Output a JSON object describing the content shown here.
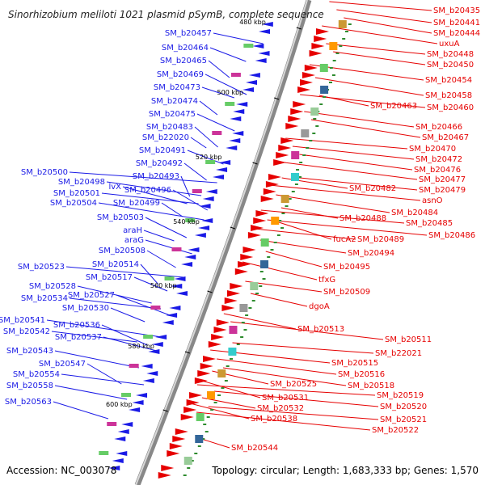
{
  "map": {
    "title": "Sinorhizobium meliloti 1021 plasmid pSymB, complete sequence",
    "accession": "Accession: NC_003078",
    "topology": "Topology: circular; Length: 1,683,333 bp; Genes: 1,570",
    "scale_labels": [
      "480 kbp",
      "500 kbp",
      "520 kbp",
      "540 kbp",
      "560 kbp",
      "580 kbp",
      "600 kbp"
    ],
    "colors": {
      "reverse": "#1a1ae6",
      "forward": "#e60000",
      "backbone": "#888888",
      "minor_tick": "#2e8b2e"
    }
  },
  "reverse_labels": [
    "SM_b20457",
    "SM_b20464",
    "SM_b20465",
    "SM_b20469",
    "SM_b20473",
    "SM_b20474",
    "SM_b20475",
    "SM_b20483",
    "SM_b22020",
    "SM_b20491",
    "SM_b20492",
    "SM_b20493",
    "SM_b20500",
    "SM_b20498",
    "lvX",
    "SM_b20496",
    "SM_b20501",
    "SM_b20499",
    "SM_b20504",
    "SM_b20503",
    "araH",
    "araG",
    "SM_b20508",
    "SM_b20514",
    "SM_b20523",
    "SM_b20517",
    "SM_b20528",
    "SM_b20527",
    "SM_b20534",
    "SM_b20530",
    "SM_b20541",
    "SM_b20536",
    "SM_b20542",
    "SM_b20537",
    "SM_b20543",
    "SM_b20547",
    "SM_b20554",
    "SM_b20558",
    "SM_b20563"
  ],
  "forward_labels": [
    "SM_b20435",
    "SM_b20441",
    "SM_b20444",
    "uxuA",
    "SM_b20448",
    "SM_b20450",
    "SM_b20454",
    "SM_b20458",
    "SM_b20463",
    "SM_b20460",
    "SM_b20466",
    "SM_b20467",
    "SM_b20470",
    "SM_b20472",
    "SM_b20476",
    "SM_b20477",
    "SM_b20482",
    "SM_b20479",
    "asnO",
    "SM_b20484",
    "SM_b20488",
    "SM_b20485",
    "SM_b20486",
    "fucA2",
    "SM_b20489",
    "SM_b20494",
    "SM_b20495",
    "tfxG",
    "SM_b20509",
    "dgoA",
    "SM_b20513",
    "SM_b20511",
    "SM_b22021",
    "SM_b20515",
    "SM_b20516",
    "SM_b20518",
    "SM_b20519",
    "SM_b20525",
    "SM_b20520",
    "SM_b20531",
    "SM_b20532",
    "SM_b20521",
    "SM_b20538",
    "SM_b20522",
    "SM_b20544"
  ]
}
